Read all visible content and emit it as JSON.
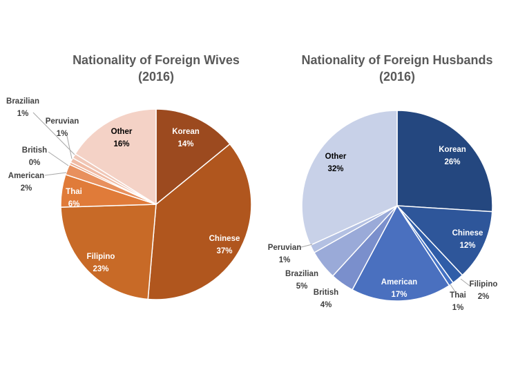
{
  "chart_data": [
    {
      "type": "pie",
      "title": "Nationality of Foreign Wives",
      "subtitle": "(2016)",
      "categories": [
        "Korean",
        "Chinese",
        "Filipino",
        "Thai",
        "American",
        "British",
        "Peruvian",
        "Brazilian",
        "Other"
      ],
      "values": [
        "14%",
        "37%",
        "23%",
        "6%",
        "2%",
        "0%",
        "1%",
        "1%",
        "16%"
      ],
      "sizes": [
        14,
        37,
        23,
        5.5,
        1.8,
        0.4,
        0.8,
        0.8,
        16
      ],
      "colors": [
        "#9C4A1F",
        "#B0561E",
        "#C86A27",
        "#E07B39",
        "#E8905D",
        "#EBA585",
        "#F0BBA4",
        "#F0C7B7",
        "#F4D2C6"
      ],
      "label_colors": [
        "#ffffff",
        "#ffffff",
        "#ffffff",
        "#ffffff",
        "#404040",
        "#404040",
        "#404040",
        "#404040",
        "#000000"
      ]
    },
    {
      "type": "pie",
      "title": "Nationality of Foreign Husbands",
      "subtitle": "(2016)",
      "categories": [
        "Korean",
        "Chinese",
        "Filipino",
        "Thai",
        "American",
        "British",
        "Brazilian",
        "Peruvian",
        "Other"
      ],
      "values": [
        "26%",
        "12%",
        "2%",
        "1%",
        "17%",
        "4%",
        "5%",
        "1%",
        "32%"
      ],
      "sizes": [
        26,
        12,
        2,
        0.8,
        17,
        4,
        5,
        1.4,
        31.8
      ],
      "colors": [
        "#24477F",
        "#2E569A",
        "#2F5DA8",
        "#4472C4",
        "#4A70BF",
        "#7A8FCC",
        "#9AAAD8",
        "#B3C0E2",
        "#C8D1E8"
      ],
      "label_colors": [
        "#ffffff",
        "#ffffff",
        "#404040",
        "#404040",
        "#ffffff",
        "#404040",
        "#404040",
        "#404040",
        "#000000"
      ]
    }
  ]
}
